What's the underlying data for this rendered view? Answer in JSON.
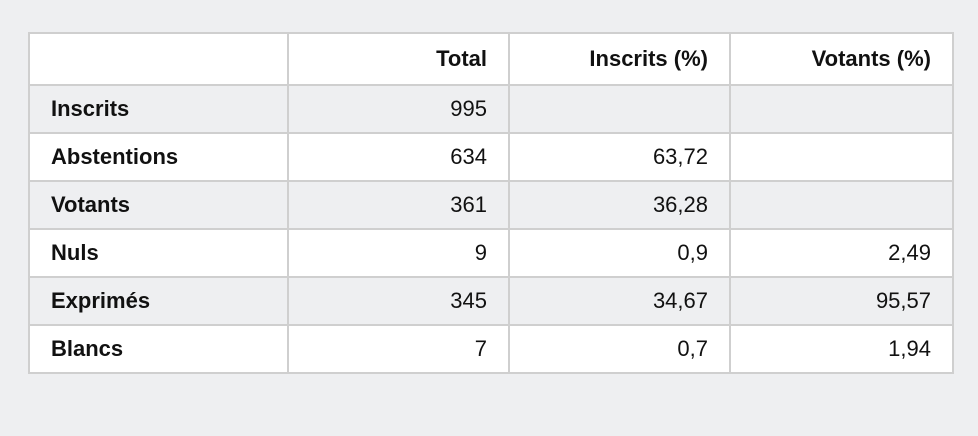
{
  "table": {
    "columns": [
      "",
      "Total",
      "Inscrits (%)",
      "Votants (%)"
    ],
    "rows": [
      {
        "label": "Inscrits",
        "total": "995",
        "inscrits_pct": "",
        "votants_pct": ""
      },
      {
        "label": "Abstentions",
        "total": "634",
        "inscrits_pct": "63,72",
        "votants_pct": ""
      },
      {
        "label": "Votants",
        "total": "361",
        "inscrits_pct": "36,28",
        "votants_pct": ""
      },
      {
        "label": "Nuls",
        "total": "9",
        "inscrits_pct": "0,9",
        "votants_pct": "2,49"
      },
      {
        "label": "Exprimés",
        "total": "345",
        "inscrits_pct": "34,67",
        "votants_pct": "95,57"
      },
      {
        "label": "Blancs",
        "total": "7",
        "inscrits_pct": "0,7",
        "votants_pct": "1,94"
      }
    ]
  }
}
